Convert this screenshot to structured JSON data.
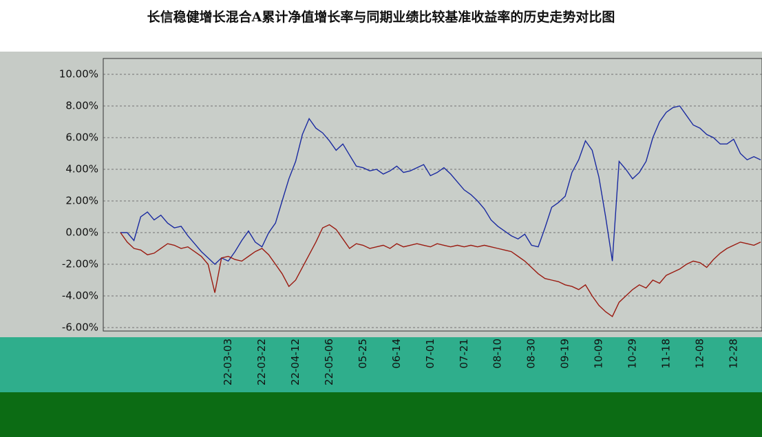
{
  "chart_data": {
    "type": "line",
    "title": "长信稳健增长混合A累计净值增长率与同期业绩比较基准收益率的历史走势对比图",
    "categories": [
      null,
      null,
      null,
      null,
      null,
      null,
      null,
      null,
      null,
      null,
      null,
      null,
      null,
      null,
      null,
      null,
      "22-03-03",
      null,
      null,
      null,
      null,
      "22-03-22",
      null,
      null,
      null,
      null,
      "22-04-12",
      null,
      null,
      null,
      null,
      "22-05-06",
      null,
      null,
      null,
      null,
      "05-25",
      null,
      null,
      null,
      null,
      "06-14",
      null,
      null,
      null,
      null,
      "07-01",
      null,
      null,
      null,
      null,
      "07-21",
      null,
      null,
      null,
      null,
      "08-10",
      null,
      null,
      null,
      null,
      "08-30",
      null,
      null,
      null,
      null,
      "09-19",
      null,
      null,
      null,
      null,
      "10-09",
      null,
      null,
      null,
      null,
      "10-29",
      null,
      null,
      null,
      null,
      "11-18",
      null,
      null,
      null,
      null,
      "12-08",
      null,
      null,
      null,
      null,
      "12-28",
      null,
      null,
      null,
      null
    ],
    "series": [
      {
        "color": "#1a2aa0",
        "values": [
          0,
          0,
          -0.5,
          1.0,
          1.3,
          0.8,
          1.1,
          0.6,
          0.3,
          0.4,
          -0.2,
          -0.7,
          -1.2,
          -1.6,
          -2.0,
          -1.6,
          -1.8,
          -1.2,
          -0.5,
          0.1,
          -0.6,
          -0.9,
          0,
          0.6,
          2.0,
          3.4,
          4.5,
          6.2,
          7.2,
          6.6,
          6.3,
          5.8,
          5.2,
          5.6,
          4.9,
          4.2,
          4.1,
          3.9,
          4.0,
          3.7,
          3.9,
          4.2,
          3.8,
          3.9,
          4.1,
          4.3,
          3.6,
          3.8,
          4.1,
          3.7,
          3.2,
          2.7,
          2.4,
          2.0,
          1.5,
          0.8,
          0.4,
          0.1,
          -0.2,
          -0.4,
          -0.1,
          -0.8,
          -0.9,
          0.3,
          1.6,
          1.9,
          2.3,
          3.8,
          4.6,
          5.8,
          5.2,
          3.5,
          1.0,
          -1.8,
          4.5,
          4.0,
          3.4,
          3.8,
          4.5,
          6.0,
          7.0,
          7.6,
          7.9,
          8.0,
          7.4,
          6.8,
          6.6,
          6.2,
          6.0,
          5.6,
          5.6,
          5.9,
          5.0,
          4.6,
          4.8,
          4.6
        ]
      },
      {
        "color": "#9a1a10",
        "values": [
          0,
          -0.6,
          -1.0,
          -1.1,
          -1.4,
          -1.3,
          -1.0,
          -0.7,
          -0.8,
          -1.0,
          -0.9,
          -1.2,
          -1.5,
          -2.0,
          -3.8,
          -1.6,
          -1.5,
          -1.7,
          -1.8,
          -1.5,
          -1.2,
          -1.0,
          -1.4,
          -2.0,
          -2.6,
          -3.4,
          -3.0,
          -2.2,
          -1.4,
          -0.6,
          0.3,
          0.5,
          0.2,
          -0.4,
          -1.0,
          -0.7,
          -0.8,
          -1.0,
          -0.9,
          -0.8,
          -1.0,
          -0.7,
          -0.9,
          -0.8,
          -0.7,
          -0.8,
          -0.9,
          -0.7,
          -0.8,
          -0.9,
          -0.8,
          -0.9,
          -0.8,
          -0.9,
          -0.8,
          -0.9,
          -1.0,
          -1.1,
          -1.2,
          -1.5,
          -1.8,
          -2.2,
          -2.6,
          -2.9,
          -3.0,
          -3.1,
          -3.3,
          -3.4,
          -3.6,
          -3.3,
          -4.0,
          -4.6,
          -5.0,
          -5.3,
          -4.4,
          -4.0,
          -3.6,
          -3.3,
          -3.5,
          -3.0,
          -3.2,
          -2.7,
          -2.5,
          -2.3,
          -2.0,
          -1.8,
          -1.9,
          -2.2,
          -1.7,
          -1.3,
          -1.0,
          -0.8,
          -0.6,
          -0.7,
          -0.8,
          -0.6
        ]
      }
    ],
    "ylim": [
      -6.2,
      11
    ],
    "yticks": [
      {
        "value": -6,
        "label": "-6.00%"
      },
      {
        "value": -4,
        "label": "-4.00%"
      },
      {
        "value": -2,
        "label": "-2.00%"
      },
      {
        "value": 0,
        "label": "0.00%"
      },
      {
        "value": 2,
        "label": "2.00%"
      },
      {
        "value": 4,
        "label": "4.00%"
      },
      {
        "value": 6,
        "label": "6.00%"
      },
      {
        "value": 8,
        "label": "8.00%"
      },
      {
        "value": 10,
        "label": "10.00%"
      }
    ],
    "grid": true
  }
}
